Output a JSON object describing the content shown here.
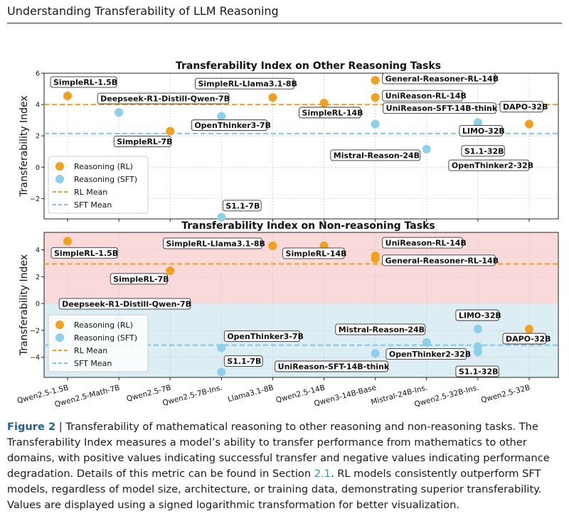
{
  "header": {
    "title": "Understanding Transferability of LLM Reasoning"
  },
  "caption": {
    "label": "Figure 2",
    "separator": " | ",
    "text_before_ref": "Transferability of mathematical reasoning to other reasoning and non-reasoning tasks. The Transferability Index measures a model’s ability to transfer performance from mathematics to other domains, with positive values indicating successful transfer and negative values indicating performance degradation. Details of this metric can be found in Section ",
    "ref": "2.1",
    "text_after_ref": ". RL models consistently outperform SFT models, regardless of model size, architecture, or training data, demonstrating superior transferability. Values are displayed using a signed logarithmic transformation for better visualization."
  },
  "colors": {
    "rl": "#f5a01a",
    "sft": "#8dd0ea",
    "rl_mean_line": "#f5a01a",
    "sft_mean_line": "#7ec8e3",
    "positive_band": "#f9d9d9",
    "negative_band": "#dcedf4"
  },
  "chart_data": [
    {
      "type": "scatter",
      "title": "Transferability Index on Other Reasoning Tasks",
      "ylabel": "Transferability Index",
      "xlabel": "",
      "ylim": [
        -3.3,
        6
      ],
      "yticks": [
        -2,
        0,
        2,
        4,
        6
      ],
      "grid": true,
      "legend": {
        "position": "bottom-left",
        "entries": [
          "Reasoning (RL)",
          "Reasoning (SFT)",
          "RL Mean",
          "SFT Mean"
        ]
      },
      "categories": [
        "Qwen2.5-1.5B",
        "Qwen2.5-Math-7B",
        "Qwen2.5-7B",
        "Qwen2.5-7B-Ins.",
        "Llama3.1-8B",
        "Qwen2.5-14B",
        "Qwen3-14B-Base",
        "Mistral-24B-Ins.",
        "Qwen2.5-32B-Ins.",
        "Qwen2.5-32B"
      ],
      "rl_mean": 4.0,
      "sft_mean": 2.15,
      "series": [
        {
          "name": "Reasoning (RL)",
          "points": [
            {
              "label": "SimpleRL-1.5B",
              "category": "Qwen2.5-1.5B",
              "y": 4.55
            },
            {
              "label": "SimpleRL-7B",
              "category": "Qwen2.5-7B",
              "y": 2.3
            },
            {
              "label": "SimpleRL-Llama3.1-8B",
              "category": "Llama3.1-8B",
              "y": 4.45
            },
            {
              "label": "SimpleRL-14B",
              "category": "Qwen2.5-14B",
              "y": 4.1
            },
            {
              "label": "General-Reasoner-RL-14B",
              "category": "Qwen3-14B-Base",
              "y": 5.55
            },
            {
              "label": "UniReason-RL-14B",
              "category": "Qwen3-14B-Base",
              "y": 4.45
            },
            {
              "label": "DAPO-32B",
              "category": "Qwen2.5-32B",
              "y": 2.75
            }
          ]
        },
        {
          "name": "Reasoning (SFT)",
          "points": [
            {
              "label": "Deepseek-R1-Distill-Qwen-7B",
              "category": "Qwen2.5-Math-7B",
              "y": 3.5
            },
            {
              "label": "OpenThinker3-7B",
              "category": "Qwen2.5-7B-Ins.",
              "y": 3.25
            },
            {
              "label": "S1.1-7B",
              "category": "Qwen2.5-7B-Ins.",
              "y": -3.2
            },
            {
              "label": "UniReason-SFT-14B-think",
              "category": "Qwen3-14B-Base",
              "y": 2.75
            },
            {
              "label": "Mistral-Reason-24B",
              "category": "Mistral-24B-Ins.",
              "y": 1.15
            },
            {
              "label": "LIMO-32B",
              "category": "Qwen2.5-32B-Ins.",
              "y": 2.85
            },
            {
              "label": "S1.1-32B",
              "category": "Qwen2.5-32B-Ins.",
              "y": 2.65
            },
            {
              "label": "OpenThinker2-32B",
              "category": "Qwen2.5-32B-Ins.",
              "y": 2.55
            }
          ]
        }
      ]
    },
    {
      "type": "scatter",
      "title": "Transferability Index on Non-reasoning Tasks",
      "ylabel": "Transferability Index",
      "xlabel": "",
      "ylim": [
        -5.5,
        5.3
      ],
      "yticks": [
        -4,
        -2,
        0,
        2,
        4
      ],
      "grid": true,
      "legend": {
        "position": "bottom-left",
        "entries": [
          "Reasoning (RL)",
          "Reasoning (SFT)",
          "RL Mean",
          "SFT Mean"
        ]
      },
      "categories": [
        "Qwen2.5-1.5B",
        "Qwen2.5-Math-7B",
        "Qwen2.5-7B",
        "Qwen2.5-7B-Ins.",
        "Llama3.1-8B",
        "Qwen2.5-14B",
        "Qwen3-14B-Base",
        "Mistral-24B-Ins.",
        "Qwen2.5-32B-Ins.",
        "Qwen2.5-32B"
      ],
      "rl_mean": 2.95,
      "sft_mean": -3.1,
      "series": [
        {
          "name": "Reasoning (RL)",
          "points": [
            {
              "label": "SimpleRL-1.5B",
              "category": "Qwen2.5-1.5B",
              "y": 4.65
            },
            {
              "label": "SimpleRL-7B",
              "category": "Qwen2.5-7B",
              "y": 2.45
            },
            {
              "label": "SimpleRL-Llama3.1-8B",
              "category": "Llama3.1-8B",
              "y": 4.3
            },
            {
              "label": "SimpleRL-14B",
              "category": "Qwen2.5-14B",
              "y": 4.3
            },
            {
              "label": "UniReason-RL-14B",
              "category": "Qwen3-14B-Base",
              "y": 3.55
            },
            {
              "label": "General-Reasoner-RL-14B",
              "category": "Qwen3-14B-Base",
              "y": 3.35
            },
            {
              "label": "DAPO-32B",
              "category": "Qwen2.5-32B",
              "y": -1.9
            }
          ]
        },
        {
          "name": "Reasoning (SFT)",
          "points": [
            {
              "label": "Deepseek-R1-Distill-Qwen-7B",
              "category": "Qwen2.5-Math-7B",
              "y": -1.1
            },
            {
              "label": "OpenThinker3-7B",
              "category": "Qwen2.5-7B-Ins.",
              "y": -3.3
            },
            {
              "label": "S1.1-7B",
              "category": "Qwen2.5-7B-Ins.",
              "y": -5.1
            },
            {
              "label": "UniReason-SFT-14B-think",
              "category": "Qwen3-14B-Base",
              "y": -3.7
            },
            {
              "label": "Mistral-Reason-24B",
              "category": "Mistral-24B-Ins.",
              "y": -2.9
            },
            {
              "label": "LIMO-32B",
              "category": "Qwen2.5-32B-Ins.",
              "y": -1.9
            },
            {
              "label": "OpenThinker2-32B",
              "category": "Qwen2.5-32B-Ins.",
              "y": -3.2
            },
            {
              "label": "S1.1-32B",
              "category": "Qwen2.5-32B-Ins.",
              "y": -3.6
            }
          ]
        }
      ]
    }
  ]
}
